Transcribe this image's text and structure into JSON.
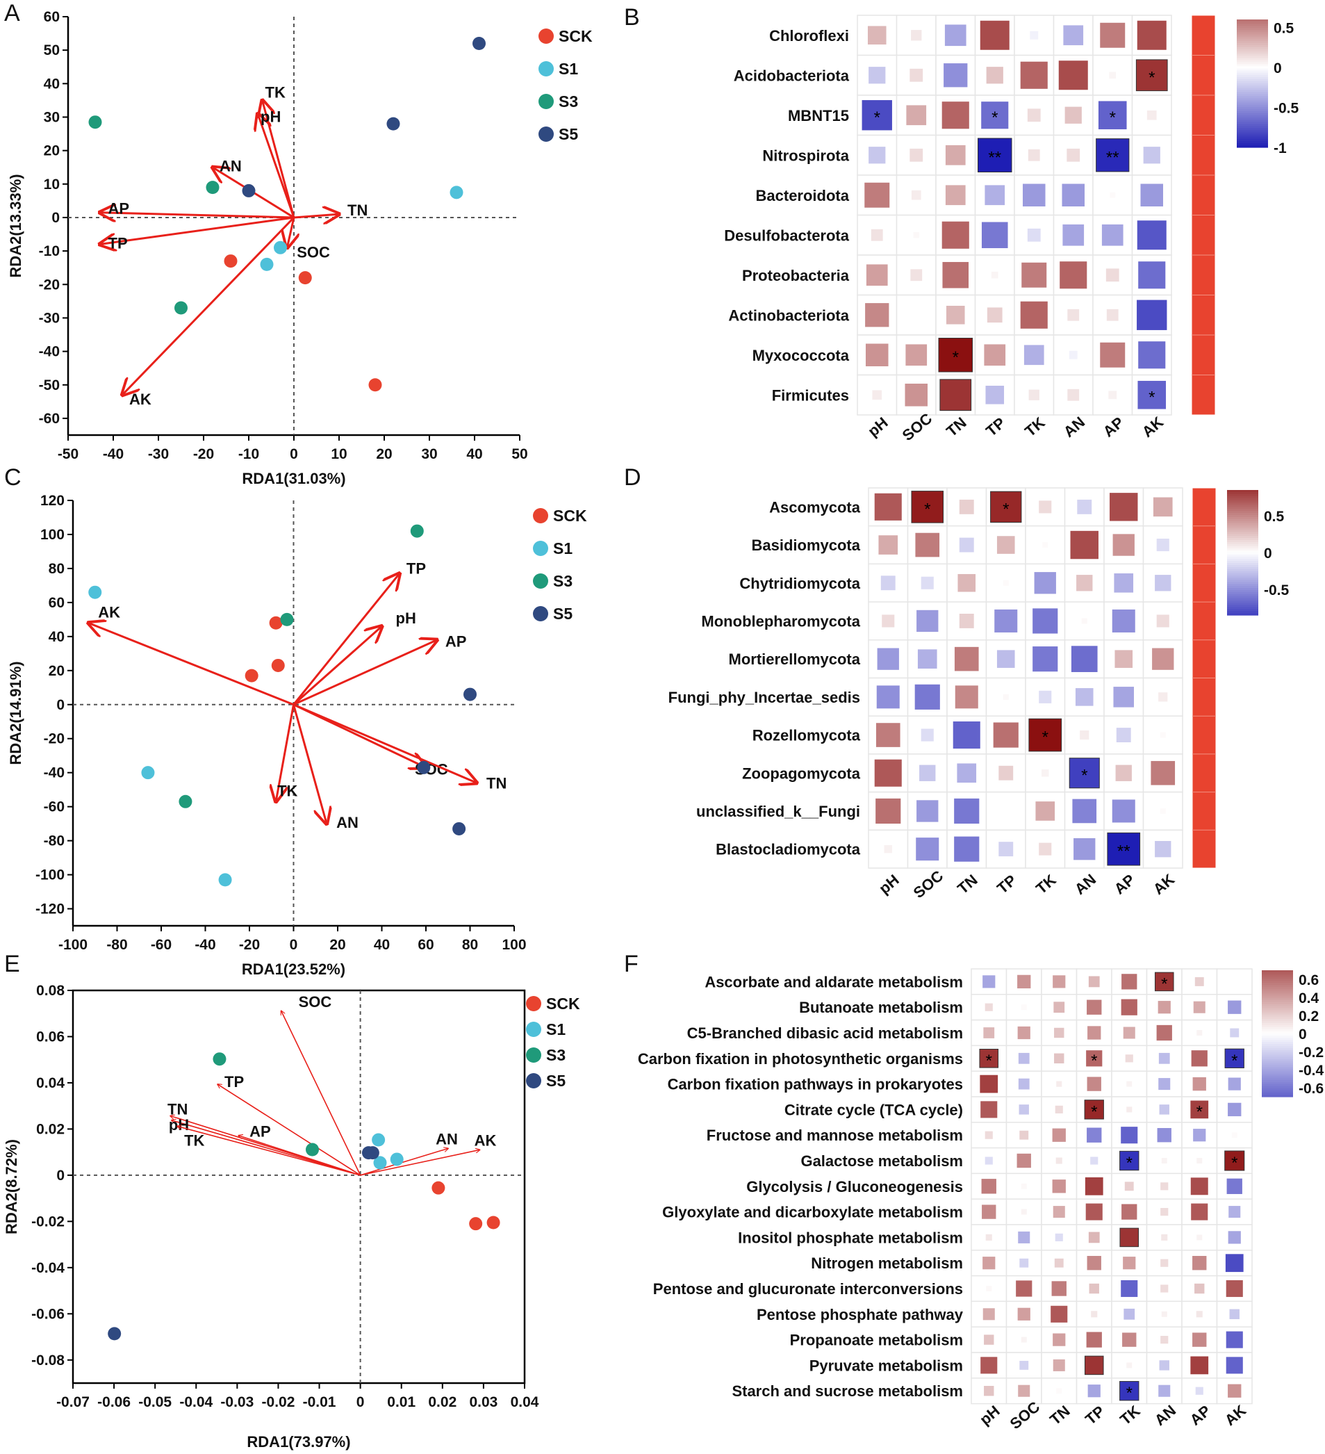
{
  "colors": {
    "SCK": "#e8432f",
    "S1": "#4ec0d9",
    "S3": "#1f9a7a",
    "S5": "#2f4980",
    "arrow": "#e8201a",
    "pos": "#8b1010",
    "neg": "#1e1eb4",
    "sidebar": "#e8432f"
  },
  "legend": [
    "SCK",
    "S1",
    "S3",
    "S5"
  ],
  "chart_data": [
    {
      "panel": "A",
      "type": "scatter",
      "xlabel": "RDA1(31.03%)",
      "ylabel": "RDA2(13.33%)",
      "xlim": [
        -50,
        50
      ],
      "ylim": [
        -65,
        60
      ],
      "xticks": [
        -50,
        -40,
        -30,
        -20,
        -10,
        0,
        10,
        20,
        30,
        40,
        50
      ],
      "yticks": [
        -60,
        -50,
        -40,
        -30,
        -20,
        -10,
        0,
        10,
        20,
        30,
        40,
        50,
        60
      ],
      "arrows": [
        {
          "label": "TK",
          "x": -7,
          "y": 35
        },
        {
          "label": "pH",
          "x": -8,
          "y": 31
        },
        {
          "label": "AN",
          "x": -18,
          "y": 15
        },
        {
          "label": "AP",
          "x": -43,
          "y": 1.5
        },
        {
          "label": "TP",
          "x": -43,
          "y": -8
        },
        {
          "label": "TN",
          "x": 10,
          "y": 1
        },
        {
          "label": "SOC",
          "x": -1.5,
          "y": -9
        },
        {
          "label": "AK",
          "x": -38,
          "y": -53
        }
      ],
      "points": [
        {
          "group": "SCK",
          "x": -14,
          "y": -13
        },
        {
          "group": "SCK",
          "x": 2.5,
          "y": -18
        },
        {
          "group": "SCK",
          "x": 18,
          "y": -50
        },
        {
          "group": "S1",
          "x": -3,
          "y": -9
        },
        {
          "group": "S1",
          "x": -6,
          "y": -14
        },
        {
          "group": "S1",
          "x": 36,
          "y": 7.5
        },
        {
          "group": "S3",
          "x": -44,
          "y": 28.5
        },
        {
          "group": "S3",
          "x": -18,
          "y": 9
        },
        {
          "group": "S3",
          "x": -25,
          "y": -27
        },
        {
          "group": "S5",
          "x": -10,
          "y": 8
        },
        {
          "group": "S5",
          "x": 22,
          "y": 28
        },
        {
          "group": "S5",
          "x": 41,
          "y": 52
        }
      ]
    },
    {
      "panel": "C",
      "type": "scatter",
      "xlabel": "RDA1(23.52%)",
      "ylabel": "RDA2(14.91%)",
      "xlim": [
        -100,
        100
      ],
      "ylim": [
        -130,
        120
      ],
      "xticks": [
        -100,
        -80,
        -60,
        -40,
        -20,
        0,
        20,
        40,
        60,
        80,
        100
      ],
      "yticks": [
        -120,
        -100,
        -80,
        -60,
        -40,
        -20,
        0,
        20,
        40,
        60,
        80,
        100,
        120
      ],
      "arrows": [
        {
          "label": "TP",
          "x": 48,
          "y": 77
        },
        {
          "label": "pH",
          "x": 40,
          "y": 46
        },
        {
          "label": "AP",
          "x": 65,
          "y": 38
        },
        {
          "label": "AK",
          "x": -93,
          "y": 48
        },
        {
          "label": "SOC",
          "x": 60,
          "y": -37
        },
        {
          "label": "TN",
          "x": 83,
          "y": -46
        },
        {
          "label": "TK",
          "x": -8,
          "y": -57
        },
        {
          "label": "AN",
          "x": 15,
          "y": -70
        }
      ],
      "points": [
        {
          "group": "SCK",
          "x": -8,
          "y": 48
        },
        {
          "group": "SCK",
          "x": -7,
          "y": 23
        },
        {
          "group": "SCK",
          "x": -19,
          "y": 17
        },
        {
          "group": "S1",
          "x": -90,
          "y": 66
        },
        {
          "group": "S1",
          "x": -66,
          "y": -40
        },
        {
          "group": "S1",
          "x": -31,
          "y": -103
        },
        {
          "group": "S3",
          "x": 56,
          "y": 102
        },
        {
          "group": "S3",
          "x": -3,
          "y": 50
        },
        {
          "group": "S3",
          "x": -49,
          "y": -57
        },
        {
          "group": "S5",
          "x": 80,
          "y": 6
        },
        {
          "group": "S5",
          "x": 59,
          "y": -37
        },
        {
          "group": "S5",
          "x": 75,
          "y": -73
        }
      ]
    },
    {
      "panel": "E",
      "type": "scatter",
      "xlabel": "RDA1(73.97%)",
      "ylabel": "RDA2(8.72%)",
      "xlim": [
        -0.07,
        0.04
      ],
      "ylim": [
        -0.09,
        0.08
      ],
      "xticks": [
        "-0.07",
        "-0.06",
        "-0.05",
        "-0.04",
        "-0.03",
        "-0.02",
        "-0.01",
        "0",
        "0.01",
        "0.02",
        "0.03",
        "0.04"
      ],
      "yticks": [
        "-0.08",
        "-0.06",
        "-0.04",
        "-0.02",
        "0",
        "0.02",
        "0.04",
        "0.06",
        "0.08"
      ],
      "arrows": [
        {
          "label": "SOC",
          "x": -0.0193,
          "y": 0.0712
        },
        {
          "label": "TP",
          "x": -0.0348,
          "y": 0.0394
        },
        {
          "label": "TN",
          "x": -0.0463,
          "y": 0.0257
        },
        {
          "label": "pH",
          "x": -0.046,
          "y": 0.0238
        },
        {
          "label": "TK",
          "x": -0.0446,
          "y": 0.0212
        },
        {
          "label": "AP",
          "x": -0.0297,
          "y": 0.0172
        },
        {
          "label": "AN",
          "x": 0.0214,
          "y": 0.0116
        },
        {
          "label": "AK",
          "x": 0.0291,
          "y": 0.011
        }
      ],
      "points": [
        {
          "group": "SCK",
          "x": 0.019,
          "y": -0.0055
        },
        {
          "group": "SCK",
          "x": 0.0281,
          "y": -0.021
        },
        {
          "group": "SCK",
          "x": 0.0324,
          "y": -0.0205
        },
        {
          "group": "S1",
          "x": 0.0044,
          "y": 0.0153
        },
        {
          "group": "S1",
          "x": 0.0089,
          "y": 0.0069
        },
        {
          "group": "S1",
          "x": 0.0048,
          "y": 0.0054
        },
        {
          "group": "S3",
          "x": -0.0343,
          "y": 0.0503
        },
        {
          "group": "S3",
          "x": -0.0117,
          "y": 0.0111
        },
        {
          "group": "S5",
          "x": 0.002,
          "y": 0.0097
        },
        {
          "group": "S5",
          "x": 0.003,
          "y": 0.0097
        },
        {
          "group": "S5",
          "x": -0.0599,
          "y": -0.0686
        }
      ]
    },
    {
      "panel": "B",
      "type": "heatmap",
      "xlabels": [
        "pH",
        "SOC",
        "TN",
        "TP",
        "TK",
        "AN",
        "AP",
        "AK"
      ],
      "ylabels": [
        "Chloroflexi",
        "Acidobacteriota",
        "MBNT15",
        "Nitrospirota",
        "Bacteroidota",
        "Desulfobacterota",
        "Proteobacteria",
        "Actinobacteriota",
        "Myxococcota",
        "Firmicutes"
      ],
      "colorbar": {
        "min": -1,
        "max": 0.6,
        "ticks": [
          "0.5",
          "0",
          "-0.5",
          "-1"
        ]
      },
      "values": [
        [
          0.3,
          0.1,
          -0.4,
          0.75,
          -0.06,
          -0.35,
          0.55,
          0.75
        ],
        [
          -0.25,
          0.15,
          -0.5,
          0.25,
          0.65,
          0.75,
          0.04,
          0.85
        ],
        [
          -0.8,
          0.35,
          0.65,
          -0.65,
          0.15,
          0.25,
          -0.7,
          0.08
        ],
        [
          -0.25,
          0.15,
          0.35,
          -1.0,
          0.12,
          0.15,
          -0.95,
          -0.25
        ],
        [
          0.55,
          0.08,
          0.35,
          -0.35,
          -0.45,
          -0.45,
          0.02,
          -0.45
        ],
        [
          0.12,
          0.03,
          0.65,
          -0.6,
          -0.15,
          -0.4,
          -0.4,
          -0.75
        ],
        [
          0.4,
          0.12,
          0.6,
          0.04,
          0.55,
          0.65,
          0.15,
          -0.65
        ],
        [
          0.5,
          0.0,
          0.3,
          0.2,
          0.65,
          0.12,
          0.12,
          -0.8
        ],
        [
          0.45,
          0.4,
          1.0,
          0.4,
          -0.35,
          -0.06,
          0.55,
          -0.65
        ],
        [
          0.08,
          0.45,
          0.85,
          -0.3,
          0.1,
          0.12,
          0.06,
          -0.7
        ]
      ],
      "stars": [
        {
          "row": 1,
          "col": 7,
          "mark": "*"
        },
        {
          "row": 2,
          "col": 0,
          "mark": "*"
        },
        {
          "row": 2,
          "col": 3,
          "mark": "*"
        },
        {
          "row": 2,
          "col": 6,
          "mark": "*"
        },
        {
          "row": 3,
          "col": 3,
          "mark": "**"
        },
        {
          "row": 3,
          "col": 6,
          "mark": "**"
        },
        {
          "row": 8,
          "col": 2,
          "mark": "*"
        },
        {
          "row": 9,
          "col": 7,
          "mark": "*"
        }
      ]
    },
    {
      "panel": "D",
      "type": "heatmap",
      "xlabels": [
        "pH",
        "SOC",
        "TN",
        "TP",
        "TK",
        "AN",
        "AP",
        "AK"
      ],
      "ylabels": [
        "Ascomycota",
        "Basidiomycota",
        "Chytridiomycota",
        "Monoblepharomycota",
        "Mortierellomycota",
        "Fungi_phy_Incertae_sedis",
        "Rozellomycota",
        "Zoopagomycota",
        "unclassified_k__Fungi",
        "Blastocladiomycota"
      ],
      "colorbar": {
        "min": -0.85,
        "max": 0.85,
        "ticks": [
          "0.5",
          "0",
          "-0.5"
        ]
      },
      "values": [
        [
          0.7,
          0.95,
          0.2,
          0.9,
          0.15,
          -0.2,
          0.75,
          0.35
        ],
        [
          0.35,
          0.55,
          -0.2,
          0.3,
          0.02,
          0.75,
          0.45,
          -0.15
        ],
        [
          -0.2,
          -0.15,
          0.3,
          0.02,
          -0.45,
          0.25,
          -0.35,
          -0.25
        ],
        [
          0.15,
          -0.45,
          0.2,
          -0.5,
          -0.6,
          0.03,
          -0.5,
          0.15
        ],
        [
          -0.45,
          -0.35,
          0.55,
          -0.3,
          -0.6,
          -0.65,
          0.3,
          0.45
        ],
        [
          -0.5,
          -0.6,
          0.5,
          0.03,
          -0.15,
          -0.3,
          -0.4,
          0.08
        ],
        [
          0.55,
          -0.15,
          -0.7,
          0.6,
          1.0,
          0.08,
          -0.2,
          0.02
        ],
        [
          0.7,
          -0.25,
          -0.35,
          0.2,
          0.05,
          -0.85,
          0.25,
          0.55
        ],
        [
          0.6,
          -0.45,
          -0.6,
          0.0,
          0.35,
          -0.55,
          -0.5,
          0.02
        ],
        [
          0.06,
          -0.5,
          -0.6,
          -0.2,
          0.15,
          -0.45,
          -1.0,
          -0.25
        ]
      ],
      "stars": [
        {
          "row": 0,
          "col": 1,
          "mark": "*"
        },
        {
          "row": 0,
          "col": 3,
          "mark": "*"
        },
        {
          "row": 6,
          "col": 4,
          "mark": "*"
        },
        {
          "row": 7,
          "col": 5,
          "mark": "*"
        },
        {
          "row": 9,
          "col": 6,
          "mark": "**"
        }
      ]
    },
    {
      "panel": "F",
      "type": "heatmap",
      "xlabels": [
        "pH",
        "SOC",
        "TN",
        "TP",
        "TK",
        "AN",
        "AP",
        "AK"
      ],
      "ylabels": [
        "Ascorbate and aldarate metabolism",
        "Butanoate metabolism",
        "C5-Branched dibasic acid metabolism",
        "Carbon fixation in photosynthetic organisms",
        "Carbon fixation pathways in prokaryotes",
        "Citrate cycle (TCA cycle)",
        "Fructose and mannose metabolism",
        "Galactose metabolism",
        "Glycolysis / Gluconeogenesis",
        "Glyoxylate and dicarboxylate metabolism",
        "Inositol phosphate metabolism",
        "Nitrogen metabolism",
        "Pentose and glucuronate interconversions",
        "Pentose phosphate pathway",
        "Propanoate metabolism",
        "Pyruvate metabolism",
        "Starch and sucrose metabolism"
      ],
      "colorbar": {
        "min": -0.7,
        "max": 0.7,
        "ticks": [
          "0.6",
          "0.4",
          "0.2",
          "0",
          "-0.2",
          "-0.4",
          "-0.6"
        ]
      },
      "values": [
        [
          -0.4,
          0.45,
          0.4,
          0.3,
          0.6,
          0.85,
          0.2,
          0.0
        ],
        [
          0.15,
          0.02,
          0.3,
          0.55,
          0.65,
          0.4,
          0.35,
          -0.45
        ],
        [
          0.3,
          0.4,
          0.25,
          0.45,
          0.35,
          0.6,
          0.05,
          -0.2
        ],
        [
          0.85,
          -0.3,
          0.25,
          0.65,
          0.15,
          -0.3,
          0.65,
          -0.9
        ],
        [
          0.8,
          -0.3,
          0.08,
          0.5,
          0.05,
          -0.35,
          0.45,
          -0.4
        ],
        [
          0.7,
          -0.25,
          0.15,
          0.9,
          0.08,
          -0.25,
          0.8,
          -0.45
        ],
        [
          0.15,
          0.2,
          0.45,
          -0.55,
          -0.7,
          -0.5,
          -0.4,
          0.02
        ],
        [
          -0.15,
          0.5,
          0.1,
          -0.15,
          -0.9,
          0.05,
          0.05,
          0.95
        ],
        [
          0.55,
          0.03,
          0.45,
          0.8,
          0.2,
          0.15,
          0.75,
          -0.6
        ],
        [
          0.5,
          0.05,
          0.35,
          0.7,
          0.6,
          0.15,
          0.7,
          -0.35
        ],
        [
          0.1,
          -0.35,
          -0.15,
          0.3,
          0.85,
          0.1,
          0.05,
          -0.4
        ],
        [
          0.4,
          -0.2,
          0.2,
          0.5,
          0.4,
          0.15,
          0.5,
          -0.8
        ],
        [
          0.03,
          0.65,
          0.55,
          0.25,
          -0.7,
          0.15,
          0.25,
          0.7
        ],
        [
          0.35,
          0.4,
          0.7,
          0.1,
          -0.3,
          0.06,
          0.1,
          -0.25
        ],
        [
          0.25,
          0.05,
          0.4,
          0.6,
          0.5,
          0.15,
          0.5,
          -0.7
        ],
        [
          0.7,
          -0.2,
          0.35,
          0.85,
          0.05,
          -0.25,
          0.8,
          -0.7
        ],
        [
          0.25,
          0.35,
          0.02,
          -0.4,
          -0.9,
          -0.35,
          -0.15,
          0.45
        ]
      ],
      "stars": [
        {
          "row": 0,
          "col": 5,
          "mark": "*"
        },
        {
          "row": 3,
          "col": 0,
          "mark": "*"
        },
        {
          "row": 3,
          "col": 3,
          "mark": "*"
        },
        {
          "row": 3,
          "col": 7,
          "mark": "*"
        },
        {
          "row": 5,
          "col": 3,
          "mark": "*"
        },
        {
          "row": 5,
          "col": 6,
          "mark": "*"
        },
        {
          "row": 7,
          "col": 4,
          "mark": "*"
        },
        {
          "row": 7,
          "col": 7,
          "mark": "*"
        },
        {
          "row": 16,
          "col": 4,
          "mark": "*"
        }
      ]
    }
  ]
}
